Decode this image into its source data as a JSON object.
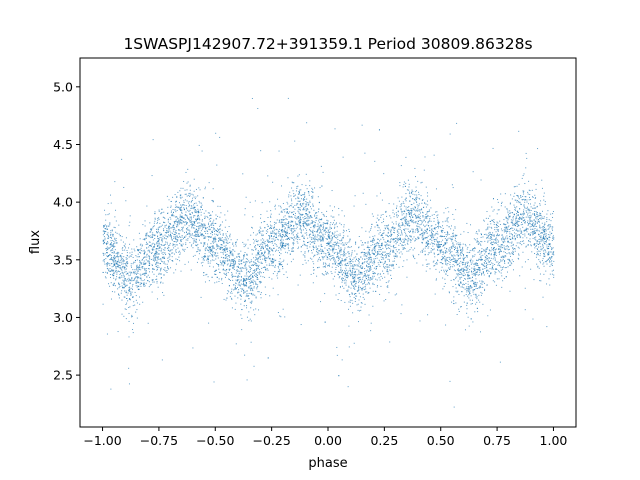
{
  "chart_data": {
    "type": "scatter",
    "title": "1SWASPJ142907.72+391359.1 Period 30809.86328s",
    "xlabel": "phase",
    "ylabel": "flux",
    "xlim": [
      -1.1,
      1.1
    ],
    "ylim": [
      2.05,
      5.25
    ],
    "x_ticks": [
      -1.0,
      -0.75,
      -0.5,
      -0.25,
      0.0,
      0.25,
      0.5,
      0.75,
      1.0
    ],
    "x_tick_labels": [
      "−1.00",
      "−0.75",
      "−0.50",
      "−0.25",
      "0.00",
      "0.25",
      "0.50",
      "0.75",
      "1.00"
    ],
    "y_ticks": [
      2.5,
      3.0,
      3.5,
      4.0,
      4.5,
      5.0
    ],
    "y_tick_labels": [
      "2.5",
      "3.0",
      "3.5",
      "4.0",
      "4.5",
      "5.0"
    ],
    "grid": false,
    "point_color": "#1f77b4",
    "series": [
      {
        "x": [
          -1.0,
          -0.875,
          -0.75,
          -0.625,
          -0.5,
          -0.375,
          -0.25,
          -0.125,
          0.0,
          0.125,
          0.25,
          0.375,
          0.5,
          0.625,
          0.75,
          0.875,
          1.0
        ],
        "values": [
          3.62,
          3.35,
          3.62,
          3.88,
          3.62,
          3.35,
          3.62,
          3.88,
          3.62,
          3.35,
          3.62,
          3.88,
          3.62,
          3.35,
          3.62,
          3.88,
          3.62
        ]
      }
    ]
  }
}
